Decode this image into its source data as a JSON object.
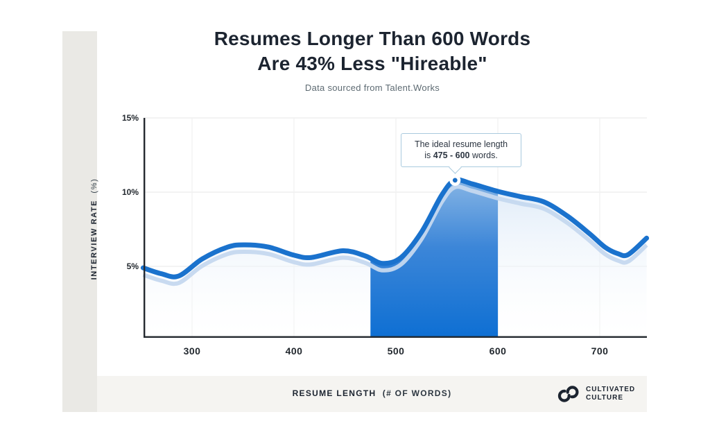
{
  "header": {
    "title_line1": "Resumes Longer Than 600 Words",
    "title_line2": "Are 43% Less \"Hireable\"",
    "subtitle": "Data sourced from Talent.Works"
  },
  "y_axis": {
    "label": "INTERVIEW RATE",
    "unit": "(%)"
  },
  "x_axis": {
    "label": "RESUME LENGTH",
    "unit": "(# OF WORDS)"
  },
  "tooltip": {
    "line1": "The ideal resume length",
    "line2_prefix": "is ",
    "line2_bold": "475 - 600",
    "line2_suffix": " words."
  },
  "branding": {
    "logo_icon": "interlocked-rings-icon",
    "logo_line1": "CULTIVATED",
    "logo_line2": "CULTURE"
  },
  "colors": {
    "line_blue": "#1a72cd",
    "echo_blue": "#c5d8ef",
    "highlight_top": "#8db9e6",
    "highlight_bottom": "#0e6fd3",
    "area_light": "#d8e7f7",
    "axis_dark": "#23282e",
    "grid_gray": "#ececec",
    "title_navy": "#1c2430",
    "strip_gray": "#eae9e5",
    "band_gray": "#f5f4f1",
    "tooltip_border": "#a9cade"
  },
  "chart_data": {
    "type": "area",
    "title": "Resumes Longer Than 600 Words Are 43% Less \"Hireable\"",
    "subtitle": "Data sourced from Talent.Works",
    "xlabel": "RESUME LENGTH (# OF WORDS)",
    "ylabel": "INTERVIEW RATE (%)",
    "xlim": [
      252,
      746
    ],
    "ylim": [
      0,
      15
    ],
    "grid": true,
    "x_ticks": [
      "300",
      "400",
      "500",
      "600",
      "700"
    ],
    "x_tick_values": [
      300,
      400,
      500,
      600,
      700
    ],
    "y_ticks": [
      "15%",
      "10%",
      "5%"
    ],
    "y_tick_values": [
      15,
      10,
      5
    ],
    "highlight_range_words": [
      475,
      600
    ],
    "peak": {
      "x": 558,
      "y": 10.8
    },
    "annotation": "The ideal resume length is 475 - 600 words.",
    "points": [
      [
        252,
        4.9
      ],
      [
        270,
        4.5
      ],
      [
        287,
        4.35
      ],
      [
        310,
        5.5
      ],
      [
        335,
        6.3
      ],
      [
        352,
        6.45
      ],
      [
        375,
        6.3
      ],
      [
        400,
        5.75
      ],
      [
        417,
        5.6
      ],
      [
        448,
        6.05
      ],
      [
        470,
        5.7
      ],
      [
        487,
        5.2
      ],
      [
        505,
        5.6
      ],
      [
        525,
        7.3
      ],
      [
        545,
        9.8
      ],
      [
        558,
        10.8
      ],
      [
        575,
        10.55
      ],
      [
        600,
        10.05
      ],
      [
        622,
        9.7
      ],
      [
        645,
        9.35
      ],
      [
        668,
        8.4
      ],
      [
        690,
        7.2
      ],
      [
        705,
        6.3
      ],
      [
        718,
        5.85
      ],
      [
        728,
        5.8
      ],
      [
        746,
        6.9
      ]
    ]
  }
}
